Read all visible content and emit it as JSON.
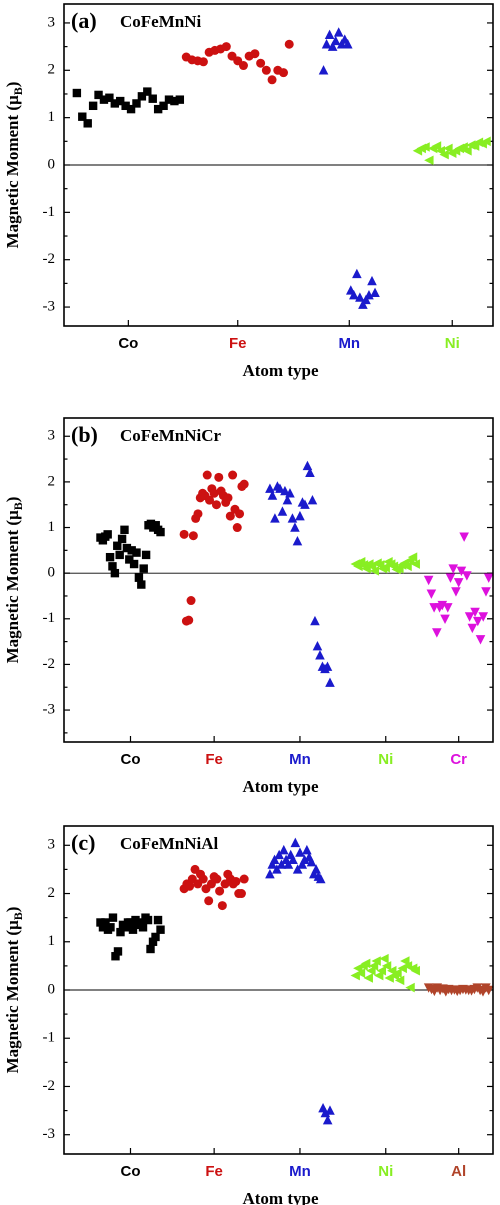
{
  "colors": {
    "Co": "#000000",
    "Fe": "#cc1111",
    "Mn": "#1a1acc",
    "Ni": "#88ee22",
    "Cr": "#dd11dd",
    "Al": "#b0442a"
  },
  "markers": {
    "Co": "square",
    "Fe": "circle",
    "Mn": "triangle-up",
    "Ni": "triangle-left",
    "Cr": "triangle-down",
    "Al": "triangle-down"
  },
  "chart_data": [
    {
      "type": "scatter",
      "panel": "(a)",
      "title": "CoFeMnNi",
      "xlabel": "Atom type",
      "ylabel": "Magnetic Moment (μB)",
      "ylabel_main": "Magnetic Moment (μ",
      "ylabel_sub": "B",
      "ylabel_close": ")",
      "ylim": [
        -3.4,
        3.4
      ],
      "yticks": [
        "-3",
        "-2",
        "-1",
        "0",
        "1",
        "2",
        "3"
      ],
      "zero_line": true,
      "categories": [
        "Co",
        "Fe",
        "Mn",
        "Ni"
      ],
      "series": [
        {
          "name": "Co",
          "values": [
            1.52,
            1.02,
            0.88,
            1.25,
            1.48,
            1.38,
            1.42,
            1.3,
            1.35,
            1.25,
            1.18,
            1.3,
            1.45,
            1.55,
            1.4,
            1.18,
            1.25,
            1.38,
            1.35,
            1.38
          ]
        },
        {
          "name": "Fe",
          "values": [
            2.28,
            2.22,
            2.2,
            2.18,
            2.38,
            2.42,
            2.45,
            2.5,
            2.3,
            2.2,
            2.1,
            2.3,
            2.35,
            2.15,
            2.0,
            1.8,
            2.0,
            1.95,
            2.55
          ]
        },
        {
          "name": "Mn",
          "values": [
            2.0,
            2.55,
            2.75,
            2.5,
            2.62,
            2.8,
            2.55,
            2.65,
            2.55,
            -2.65,
            -2.75,
            -2.3,
            -2.8,
            -2.95,
            -2.85,
            -2.75,
            -2.45,
            -2.7
          ]
        },
        {
          "name": "Ni",
          "values": [
            0.3,
            0.35,
            0.38,
            0.1,
            0.35,
            0.4,
            0.3,
            0.22,
            0.35,
            0.25,
            0.3,
            0.35,
            0.38,
            0.3,
            0.42,
            0.4,
            0.48,
            0.45,
            0.5
          ]
        }
      ]
    },
    {
      "type": "scatter",
      "panel": "(b)",
      "title": "CoFeMnNiCr",
      "xlabel": "Atom type",
      "ylabel": "Magnetic Moment (μB)",
      "ylabel_main": "Magnetic Moment (μ",
      "ylabel_sub": "B",
      "ylabel_close": ")",
      "ylim": [
        -3.7,
        3.4
      ],
      "yticks": [
        "-3",
        "-2",
        "-1",
        "0",
        "1",
        "2",
        "3"
      ],
      "zero_line": true,
      "categories": [
        "Co",
        "Fe",
        "Mn",
        "Ni",
        "Cr"
      ],
      "series": [
        {
          "name": "Co",
          "values": [
            0.78,
            0.72,
            0.8,
            0.85,
            0.35,
            0.15,
            0.0,
            0.6,
            0.4,
            0.75,
            0.95,
            0.55,
            0.3,
            0.5,
            0.2,
            0.45,
            -0.1,
            -0.25,
            0.1,
            0.4,
            1.05,
            1.08,
            1.0,
            1.05,
            0.95,
            0.9
          ]
        },
        {
          "name": "Fe",
          "values": [
            0.85,
            -1.05,
            -1.03,
            -0.6,
            0.82,
            1.2,
            1.3,
            1.65,
            1.75,
            1.7,
            2.15,
            1.6,
            1.85,
            1.75,
            1.5,
            2.1,
            1.8,
            1.7,
            1.55,
            1.65,
            1.25,
            2.15,
            1.4,
            1.0,
            1.3,
            1.9,
            1.95
          ]
        },
        {
          "name": "Mn",
          "values": [
            1.85,
            1.7,
            1.2,
            1.9,
            1.85,
            1.35,
            1.8,
            1.6,
            1.75,
            1.2,
            1.0,
            0.7,
            1.25,
            1.55,
            1.5,
            2.35,
            2.2,
            1.6,
            -1.05,
            -1.6,
            -1.8,
            -2.05,
            -2.1,
            -2.05,
            -2.4
          ]
        },
        {
          "name": "Ni",
          "values": [
            0.2,
            0.15,
            0.25,
            0.18,
            0.1,
            0.2,
            0.15,
            0.05,
            0.22,
            0.18,
            0.1,
            0.12,
            0.25,
            0.2,
            0.15,
            0.08,
            0.1,
            0.18,
            0.22,
            0.15,
            0.28,
            0.35,
            0.2
          ]
        },
        {
          "name": "Cr",
          "values": [
            -0.15,
            -0.45,
            -0.75,
            -1.3,
            -0.75,
            -0.7,
            -1.0,
            -0.75,
            -0.1,
            0.1,
            -0.4,
            -0.2,
            0.05,
            0.8,
            -0.05,
            -0.95,
            -1.2,
            -0.85,
            -1.05,
            -1.45,
            -0.95,
            -0.4,
            -0.1
          ]
        }
      ]
    },
    {
      "type": "scatter",
      "panel": "(c)",
      "title": "CoFeMnNiAl",
      "xlabel": "Atom type",
      "ylabel": "Magnetic Moment (μB)",
      "ylabel_main": "Magnetic Moment (μ",
      "ylabel_sub": "B",
      "ylabel_close": ")",
      "ylim": [
        -3.4,
        3.4
      ],
      "yticks": [
        "-3",
        "-2",
        "-1",
        "0",
        "1",
        "2",
        "3"
      ],
      "zero_line": true,
      "categories": [
        "Co",
        "Fe",
        "Mn",
        "Ni",
        "Al"
      ],
      "series": [
        {
          "name": "Co",
          "values": [
            1.4,
            1.3,
            1.4,
            1.25,
            1.3,
            1.5,
            0.7,
            0.8,
            1.2,
            1.35,
            1.3,
            1.4,
            1.4,
            1.25,
            1.45,
            1.35,
            1.4,
            1.3,
            1.5,
            1.45,
            0.85,
            1.0,
            1.1,
            1.45,
            1.25
          ]
        },
        {
          "name": "Fe",
          "values": [
            2.1,
            2.2,
            2.15,
            2.3,
            2.5,
            2.2,
            2.4,
            2.3,
            2.1,
            1.85,
            2.2,
            2.35,
            2.3,
            2.05,
            1.75,
            2.2,
            2.4,
            2.3,
            2.2,
            2.25,
            2.0,
            2.0,
            2.3
          ]
        },
        {
          "name": "Mn",
          "values": [
            2.4,
            2.6,
            2.7,
            2.5,
            2.8,
            2.6,
            2.9,
            2.7,
            2.6,
            2.8,
            2.7,
            3.05,
            2.5,
            2.85,
            2.6,
            2.7,
            2.9,
            2.75,
            2.65,
            2.4,
            2.5,
            2.35,
            2.3,
            -2.45,
            -2.55,
            -2.7,
            -2.5
          ]
        },
        {
          "name": "Ni",
          "values": [
            0.3,
            0.45,
            0.35,
            0.5,
            0.55,
            0.25,
            0.4,
            0.5,
            0.6,
            0.3,
            0.4,
            0.65,
            0.5,
            0.25,
            0.4,
            0.3,
            0.35,
            0.2,
            0.45,
            0.6,
            0.5,
            0.05,
            0.45,
            0.4
          ]
        },
        {
          "name": "Al",
          "values": [
            0.05,
            0.02,
            -0.02,
            0.05,
            0.0,
            0.03,
            -0.03,
            0.02,
            0.0,
            0.01,
            -0.02,
            0.0,
            0.02,
            0.01,
            0.0,
            -0.01,
            0.02,
            0.05,
            0.0,
            -0.03,
            0.05,
            0.0
          ]
        }
      ]
    }
  ]
}
